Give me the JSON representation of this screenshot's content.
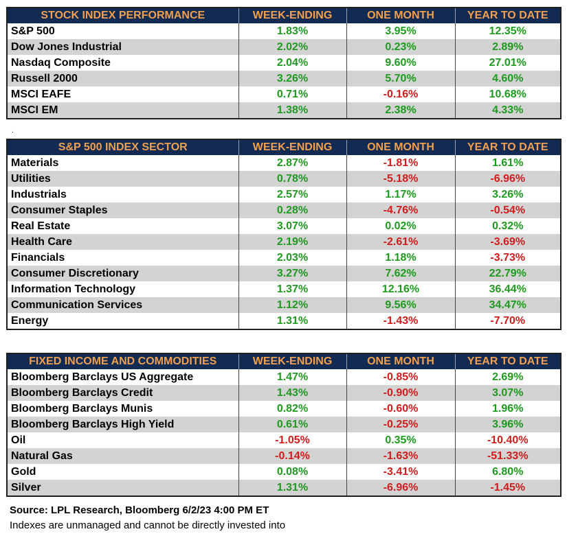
{
  "colors": {
    "header_bg": "#132a52",
    "header_text": "#f0a050",
    "positive": "#1e9a1e",
    "negative": "#d21b1b",
    "stripe": "#d3d3d3"
  },
  "tables": [
    {
      "headers": [
        "STOCK INDEX PERFORMANCE",
        "WEEK-ENDING",
        "ONE MONTH",
        "YEAR TO DATE"
      ],
      "rows": [
        [
          "S&P 500",
          "1.83%",
          "3.95%",
          "12.35%"
        ],
        [
          "Dow Jones Industrial",
          "2.02%",
          "0.23%",
          "2.89%"
        ],
        [
          "Nasdaq Composite",
          "2.04%",
          "9.60%",
          "27.01%"
        ],
        [
          "Russell 2000",
          "3.26%",
          "5.70%",
          "4.60%"
        ],
        [
          "MSCI EAFE",
          "0.71%",
          "-0.16%",
          "10.68%"
        ],
        [
          "MSCI EM",
          "1.38%",
          "2.38%",
          "4.33%"
        ]
      ]
    },
    {
      "headers": [
        "S&P 500 INDEX SECTOR",
        "WEEK-ENDING",
        "ONE MONTH",
        "YEAR TO DATE"
      ],
      "rows": [
        [
          "Materials",
          "2.87%",
          "-1.81%",
          "1.61%"
        ],
        [
          "Utilities",
          "0.78%",
          "-5.18%",
          "-6.96%"
        ],
        [
          "Industrials",
          "2.57%",
          "1.17%",
          "3.26%"
        ],
        [
          "Consumer Staples",
          "0.28%",
          "-4.76%",
          "-0.54%"
        ],
        [
          "Real Estate",
          "3.07%",
          "0.02%",
          "0.32%"
        ],
        [
          "Health Care",
          "2.19%",
          "-2.61%",
          "-3.69%"
        ],
        [
          "Financials",
          "2.03%",
          "1.18%",
          "-3.73%"
        ],
        [
          "Consumer Discretionary",
          "3.27%",
          "7.62%",
          "22.79%"
        ],
        [
          "Information Technology",
          "1.37%",
          "12.16%",
          "36.44%"
        ],
        [
          "Communication Services",
          "1.12%",
          "9.56%",
          "34.47%"
        ],
        [
          "Energy",
          "1.31%",
          "-1.43%",
          "-7.70%"
        ]
      ]
    },
    {
      "headers": [
        "FIXED INCOME AND COMMODITIES",
        "WEEK-ENDING",
        "ONE MONTH",
        "YEAR TO DATE"
      ],
      "rows": [
        [
          "Bloomberg Barclays US Aggregate",
          "1.47%",
          "-0.85%",
          "2.69%"
        ],
        [
          "Bloomberg Barclays Credit",
          "1.43%",
          "-0.90%",
          "3.07%"
        ],
        [
          "Bloomberg Barclays Munis",
          "0.82%",
          "-0.60%",
          "1.96%"
        ],
        [
          "Bloomberg Barclays High Yield",
          "0.61%",
          "-0.25%",
          "3.96%"
        ],
        [
          "Oil",
          "-1.05%",
          "0.35%",
          "-10.40%"
        ],
        [
          "Natural Gas",
          "-0.14%",
          "-1.63%",
          "-51.33%"
        ],
        [
          "Gold",
          "0.08%",
          "-3.41%",
          "6.80%"
        ],
        [
          "Silver",
          "1.31%",
          "-6.96%",
          "-1.45%"
        ]
      ]
    }
  ],
  "separator_mark": ".",
  "source": "Source: LPL Research, Bloomberg 6/2/23 4:00 PM ET",
  "note": "Indexes are unmanaged and cannot be directly invested into"
}
